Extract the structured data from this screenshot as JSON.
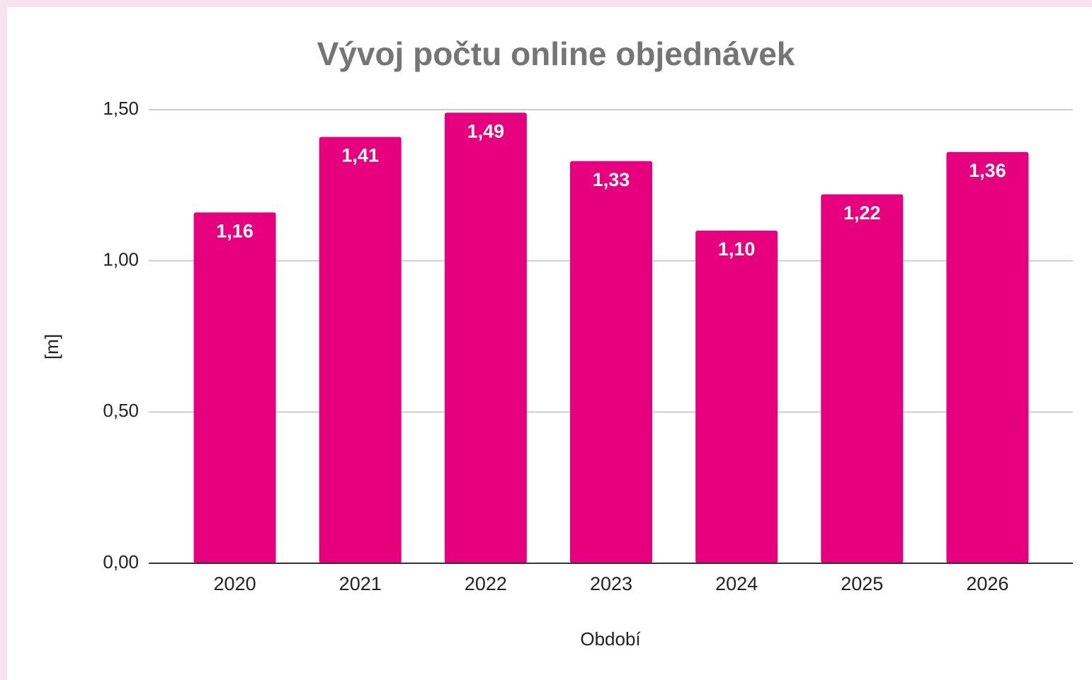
{
  "chart_data": {
    "type": "bar",
    "title": "Vývoj počtu online objednávek",
    "x_label": "Období",
    "y_label": "[m]",
    "categories": [
      "2020",
      "2021",
      "2022",
      "2023",
      "2024",
      "2025",
      "2026"
    ],
    "values": [
      1.16,
      1.41,
      1.49,
      1.33,
      1.1,
      1.22,
      1.36
    ],
    "value_labels": [
      "1,16",
      "1,41",
      "1,49",
      "1,33",
      "1,10",
      "1,22",
      "1,36"
    ],
    "color": "#e6007e",
    "ylim": [
      0,
      1.5
    ],
    "yticks": [
      {
        "value": 0,
        "label": "0,00"
      },
      {
        "value": 0.5,
        "label": "0,50"
      },
      {
        "value": 1,
        "label": "1,00"
      },
      {
        "value": 1.5,
        "label": "1,50"
      }
    ],
    "grid": true
  }
}
